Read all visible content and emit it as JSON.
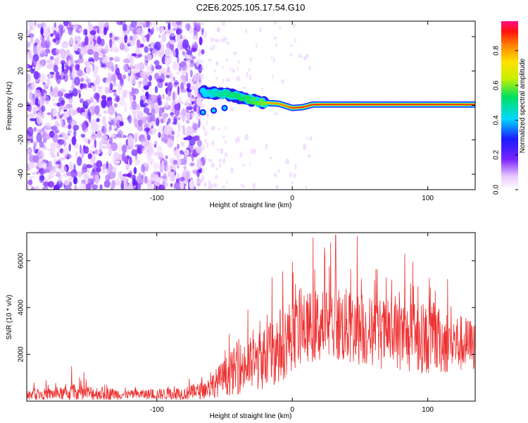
{
  "title": "C2E6.2025.105.17.54.G10",
  "chart_data": [
    {
      "type": "heatmap",
      "xlabel": "Height of straight line (km)",
      "ylabel": "Frequency (Hz)",
      "xlim": [
        -196,
        135
      ],
      "ylim": [
        -49,
        49
      ],
      "xticks": [
        -100,
        0,
        100
      ],
      "yticks": [
        -40,
        -20,
        0,
        20,
        40
      ],
      "colorbar": {
        "label": "Normalized spectral amplitude",
        "range": [
          0.0,
          0.97
        ],
        "ticks": [
          0.0,
          0.2,
          0.4,
          0.6,
          0.8
        ],
        "tick_labels": [
          "0.0",
          "0.2",
          "0.4",
          "0.6",
          "0.8"
        ]
      },
      "features": {
        "noise_region_x": [
          -196,
          -66
        ],
        "signal_trace": [
          {
            "x": -66,
            "freq": 8.0
          },
          {
            "x": -55,
            "freq": 7.0
          },
          {
            "x": -45,
            "freq": 6.0
          },
          {
            "x": -38,
            "freq": 4.5
          },
          {
            "x": -30,
            "freq": 3.0
          },
          {
            "x": -20,
            "freq": 1.5
          },
          {
            "x": -10,
            "freq": 1.0
          },
          {
            "x": 0,
            "freq": -1.5
          },
          {
            "x": 8,
            "freq": -1.0
          },
          {
            "x": 15,
            "freq": 0.5
          },
          {
            "x": 50,
            "freq": 0.5
          },
          {
            "x": 100,
            "freq": 0.5
          },
          {
            "x": 135,
            "freq": 0.5
          }
        ],
        "secondary_trace": [
          {
            "x": -66,
            "freq": -4.0
          },
          {
            "x": -58,
            "freq": -3.0
          },
          {
            "x": -50,
            "freq": -1.5
          }
        ]
      }
    },
    {
      "type": "line",
      "xlabel": "Height of straight line (km)",
      "ylabel": "SNR (10 * v/v)",
      "xlim": [
        -196,
        135
      ],
      "ylim": [
        0,
        7200
      ],
      "xticks": [
        -100,
        0,
        100
      ],
      "yticks": [
        2000,
        4000,
        6000
      ],
      "series": [
        {
          "color": "#ee3030",
          "envelope": [
            {
              "x": -196,
              "base": 300,
              "amp": 400
            },
            {
              "x": -170,
              "base": 350,
              "amp": 500
            },
            {
              "x": -160,
              "base": 400,
              "amp": 700
            },
            {
              "x": -120,
              "base": 300,
              "amp": 350
            },
            {
              "x": -80,
              "base": 350,
              "amp": 500
            },
            {
              "x": -65,
              "base": 500,
              "amp": 700
            },
            {
              "x": -55,
              "base": 900,
              "amp": 1200
            },
            {
              "x": -40,
              "base": 1500,
              "amp": 2000
            },
            {
              "x": -25,
              "base": 1800,
              "amp": 2300
            },
            {
              "x": -10,
              "base": 2500,
              "amp": 3000
            },
            {
              "x": 0,
              "base": 3000,
              "amp": 2800
            },
            {
              "x": 10,
              "base": 3300,
              "amp": 2700
            },
            {
              "x": 30,
              "base": 3500,
              "amp": 3200
            },
            {
              "x": 50,
              "base": 3200,
              "amp": 2800
            },
            {
              "x": 80,
              "base": 2900,
              "amp": 2800
            },
            {
              "x": 110,
              "base": 2700,
              "amp": 2600
            },
            {
              "x": 135,
              "base": 2500,
              "amp": 2000
            }
          ],
          "spikes": [
            {
              "x": -163,
              "value": 1500
            },
            {
              "x": -15,
              "value": 5300
            },
            {
              "x": 32,
              "value": 7100
            },
            {
              "x": 48,
              "value": 7050
            },
            {
              "x": 24,
              "value": 6250
            },
            {
              "x": 83,
              "value": 6300
            }
          ]
        }
      ]
    }
  ]
}
